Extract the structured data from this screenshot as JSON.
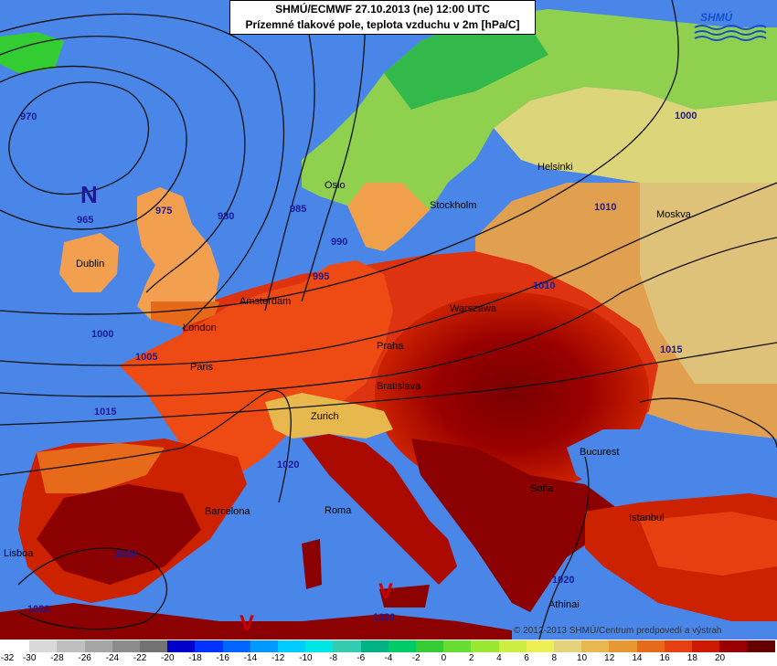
{
  "title": {
    "line1": "SHMÚ/ECMWF 27.10.2013 (ne) 12:00 UTC",
    "line2": "Prízemné tlakové pole, teplota vzduchu v 2m [hPa/C]"
  },
  "logo_text": "SHMÚ",
  "copyright": "© 2012-2013 SHMÚ/Centrum predpovedí a výstrah",
  "cities": [
    "Oslo",
    "Stockholm",
    "Helsinki",
    "Moskva",
    "Dublin",
    "Amsterdam",
    "London",
    "Warszawa",
    "Paris",
    "Praha",
    "Bratislava",
    "Zurich",
    "Barcelona",
    "Roma",
    "Lisboa",
    "Bucurest",
    "Sofia",
    "Istanbul",
    "Athinai"
  ],
  "pressure_centers": [
    {
      "type": "N",
      "value": "965"
    },
    {
      "type": "V",
      "value": "1020"
    },
    {
      "type": "V",
      "value": "1020"
    }
  ],
  "isobar_labels": [
    "970",
    "975",
    "980",
    "985",
    "990",
    "995",
    "1000",
    "1005",
    "1010",
    "1015",
    "1020",
    "1000",
    "1010",
    "1015",
    "1020",
    "1020",
    "1020"
  ],
  "legend": {
    "values": [
      "-32",
      "-30",
      "-28",
      "-26",
      "-24",
      "-22",
      "-20",
      "-18",
      "-16",
      "-14",
      "-12",
      "-10",
      "-8",
      "-6",
      "-4",
      "-2",
      "0",
      "2",
      "4",
      "6",
      "8",
      "10",
      "12",
      "14",
      "16",
      "18",
      "20"
    ],
    "colors": [
      "#ffffff",
      "#d9d9d9",
      "#bfbfbf",
      "#a6a6a6",
      "#8c8c8c",
      "#737373",
      "#0000cc",
      "#0033ff",
      "#0066ff",
      "#0099ff",
      "#00ccff",
      "#00e6e6",
      "#33ccb3",
      "#00b380",
      "#00cc66",
      "#33cc33",
      "#66dd33",
      "#99e633",
      "#ccee44",
      "#eeee55",
      "#e6d27a",
      "#e6b84d",
      "#e69933",
      "#e66a1a",
      "#e64010",
      "#cc1a00",
      "#990000",
      "#660000"
    ]
  }
}
